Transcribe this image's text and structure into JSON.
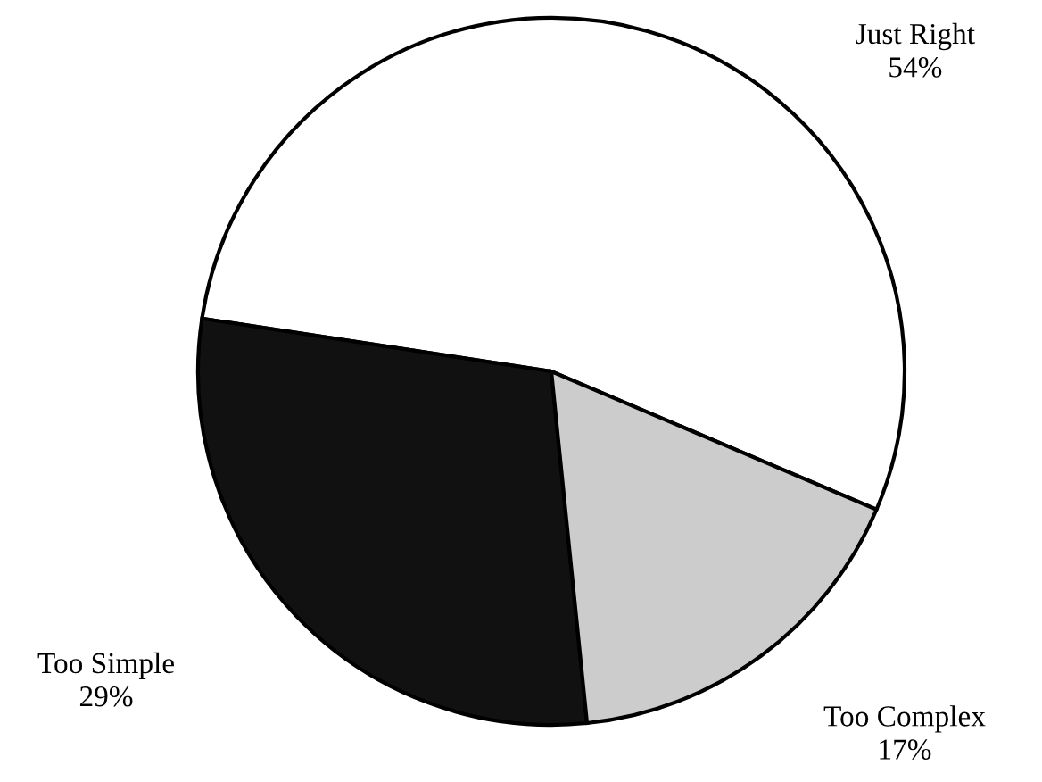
{
  "chart_data": {
    "type": "pie",
    "categories": [
      "Just Right",
      "Too Simple",
      "Too Complex"
    ],
    "values": [
      54,
      29,
      17
    ],
    "value_labels": [
      "54%",
      "29%",
      "17%"
    ],
    "colors": [
      "#ffffff",
      "#111111",
      "#cccccc"
    ]
  }
}
